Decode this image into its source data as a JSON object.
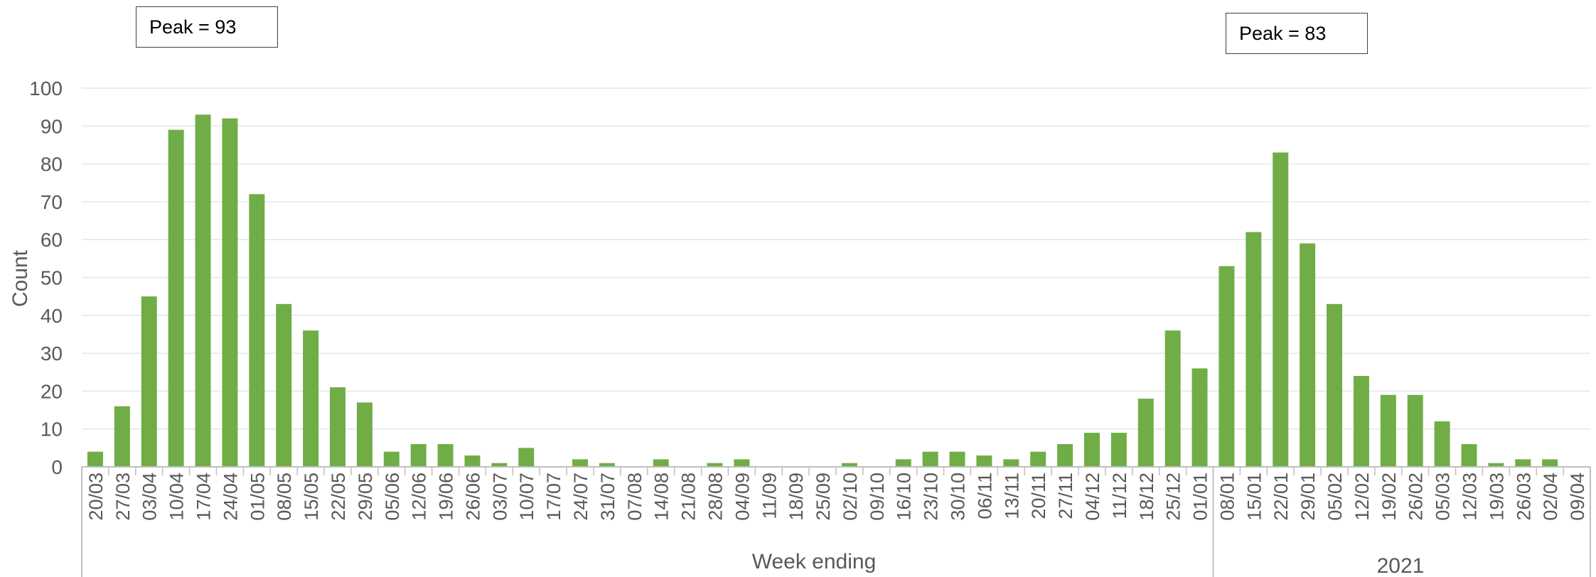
{
  "annotations": {
    "peak1": "Peak = 93",
    "peak2": "Peak = 83"
  },
  "chart_data": {
    "type": "bar",
    "ylabel": "Count",
    "xlabel": "Week ending",
    "group_labels": [
      "Week ending",
      "2021"
    ],
    "ylim": [
      0,
      100
    ],
    "yticks": [
      0,
      10,
      20,
      30,
      40,
      50,
      60,
      70,
      80,
      90,
      100
    ],
    "grid": true,
    "bar_color": "#70AD47",
    "categories": [
      "20/03",
      "27/03",
      "03/04",
      "10/04",
      "17/04",
      "24/04",
      "01/05",
      "08/05",
      "15/05",
      "22/05",
      "29/05",
      "05/06",
      "12/06",
      "19/06",
      "26/06",
      "03/07",
      "10/07",
      "17/07",
      "24/07",
      "31/07",
      "07/08",
      "14/08",
      "21/08",
      "28/08",
      "04/09",
      "11/09",
      "18/09",
      "25/09",
      "02/10",
      "09/10",
      "16/10",
      "23/10",
      "30/10",
      "06/11",
      "13/11",
      "20/11",
      "27/11",
      "04/12",
      "11/12",
      "18/12",
      "25/12",
      "01/01",
      "08/01",
      "15/01",
      "22/01",
      "29/01",
      "05/02",
      "12/02",
      "19/02",
      "26/02",
      "05/03",
      "12/03",
      "19/03",
      "26/03",
      "02/04",
      "09/04"
    ],
    "values": [
      4,
      16,
      45,
      89,
      93,
      92,
      72,
      43,
      36,
      21,
      17,
      4,
      6,
      6,
      3,
      1,
      5,
      0,
      2,
      1,
      0,
      2,
      0,
      1,
      2,
      0,
      0,
      0,
      1,
      0,
      2,
      4,
      4,
      3,
      2,
      4,
      6,
      9,
      9,
      18,
      36,
      26,
      53,
      62,
      83,
      59,
      43,
      24,
      19,
      19,
      12,
      6,
      1,
      2,
      2,
      0
    ]
  }
}
